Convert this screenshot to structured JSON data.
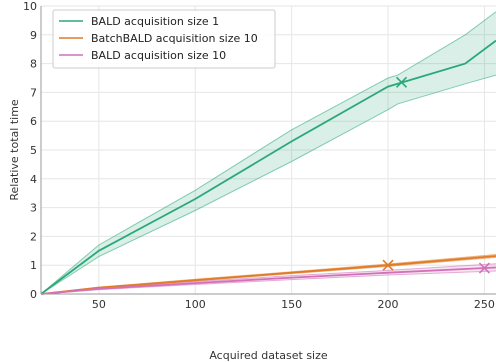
{
  "chart_data": {
    "type": "line",
    "title": "",
    "xlabel": "Acquired dataset size",
    "ylabel": "Relative total time",
    "xlim": [
      20,
      256
    ],
    "ylim": [
      0,
      10
    ],
    "xticks": [
      50,
      100,
      150,
      200,
      250
    ],
    "xtick_labels": [
      "50",
      "100",
      "150",
      "200",
      "250"
    ],
    "yticks": [
      0,
      1,
      2,
      3,
      4,
      5,
      6,
      7,
      8,
      9,
      10
    ],
    "ytick_labels": [
      "0",
      "1",
      "2",
      "3",
      "4",
      "5",
      "6",
      "7",
      "8",
      "9",
      "10"
    ],
    "grid": true,
    "legend_position": "top-left",
    "series": [
      {
        "name": "BALD acquisition size 1",
        "color": "#2aa87a",
        "band_color": "#2aa87a",
        "x": [
          20,
          50,
          100,
          150,
          200,
          205,
          240,
          256
        ],
        "y": [
          0,
          1.5,
          3.3,
          5.3,
          7.2,
          7.3,
          8.0,
          8.8
        ],
        "lower": [
          0,
          1.3,
          2.9,
          4.6,
          6.4,
          6.6,
          7.3,
          7.6
        ],
        "upper": [
          0,
          1.7,
          3.6,
          5.7,
          7.5,
          7.6,
          9.0,
          9.8
        ],
        "marker": {
          "x": 207,
          "y": 7.35
        }
      },
      {
        "name": "BatchBALD acquisition size 10",
        "color": "#e07b27",
        "band_color": "#e07b27",
        "x": [
          20,
          50,
          100,
          150,
          200,
          256
        ],
        "y": [
          0,
          0.22,
          0.48,
          0.74,
          1.0,
          1.32
        ],
        "lower": [
          0,
          0.2,
          0.45,
          0.71,
          0.96,
          1.27
        ],
        "upper": [
          0,
          0.24,
          0.51,
          0.77,
          1.04,
          1.37
        ],
        "marker": {
          "x": 200,
          "y": 1.0
        }
      },
      {
        "name": "BALD acquisition size 10",
        "color": "#d270b8",
        "band_color": "#d270b8",
        "x": [
          20,
          50,
          100,
          150,
          200,
          256
        ],
        "y": [
          0,
          0.18,
          0.38,
          0.57,
          0.74,
          0.92
        ],
        "lower": [
          0,
          0.15,
          0.33,
          0.5,
          0.66,
          0.8
        ],
        "upper": [
          0,
          0.21,
          0.43,
          0.64,
          0.82,
          1.05
        ],
        "marker": {
          "x": 250,
          "y": 0.9
        }
      }
    ]
  }
}
